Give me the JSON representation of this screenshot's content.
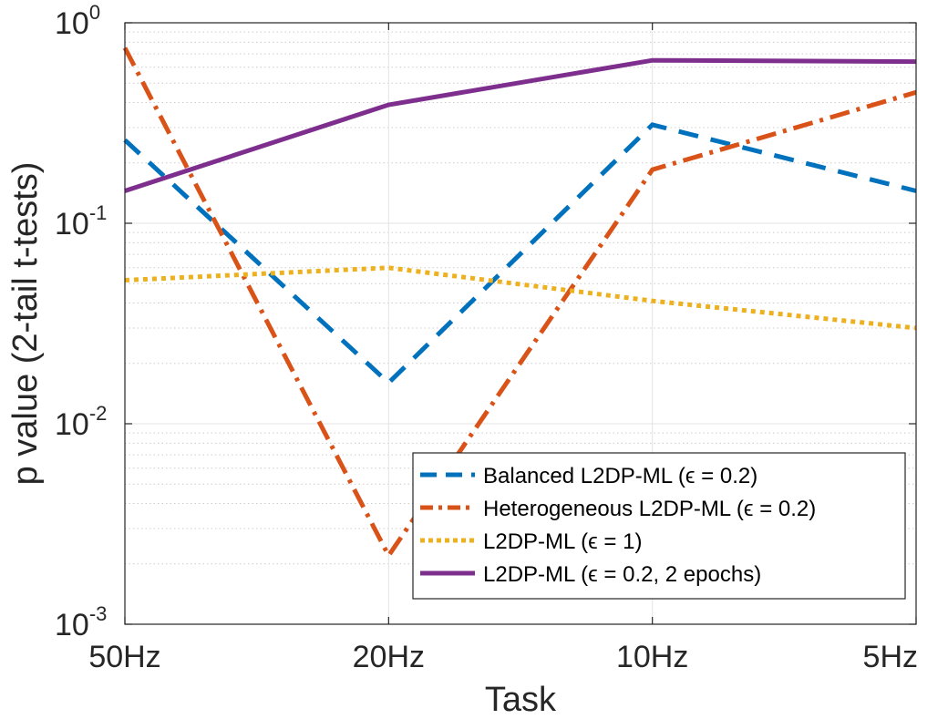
{
  "chart_data": {
    "type": "line",
    "x_scale": "category",
    "y_scale": "log",
    "categories": [
      "50Hz",
      "20Hz",
      "10Hz",
      "5Hz"
    ],
    "xlabel": "Task",
    "ylabel": "p value (2-tail t-tests)",
    "ylim": [
      0.001,
      1
    ],
    "y_ticks": [
      {
        "value": 0.001,
        "base": "10",
        "exp": "-3"
      },
      {
        "value": 0.01,
        "base": "10",
        "exp": "-2"
      },
      {
        "value": 0.1,
        "base": "10",
        "exp": "-1"
      },
      {
        "value": 1,
        "base": "10",
        "exp": "0"
      }
    ],
    "grid": true,
    "legend_position": "bottom-right",
    "series": [
      {
        "name": "Balanced L2DP-ML (ϵ = 0.2)",
        "values": [
          0.26,
          0.016,
          0.31,
          0.145
        ],
        "color": "#0072BD",
        "dash": "dashed"
      },
      {
        "name": "Heterogeneous L2DP-ML (ϵ = 0.2)",
        "values": [
          0.75,
          0.0022,
          0.185,
          0.45
        ],
        "color": "#D95319",
        "dash": "dashdot"
      },
      {
        "name": "L2DP-ML (ϵ = 1)",
        "values": [
          0.052,
          0.06,
          0.041,
          0.03
        ],
        "color": "#EDB120",
        "dash": "dotted"
      },
      {
        "name": "L2DP-ML (ϵ = 0.2, 2 epochs)",
        "values": [
          0.145,
          0.39,
          0.65,
          0.64
        ],
        "color": "#7E2F8E",
        "dash": "solid"
      }
    ]
  }
}
